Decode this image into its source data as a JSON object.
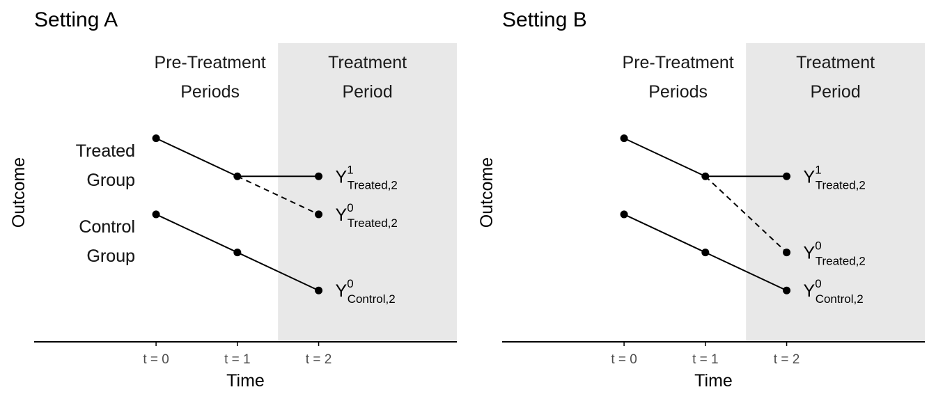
{
  "colors": {
    "shade": "#e8e8e8",
    "line": "#000000",
    "tick_text": "#4d4d4d"
  },
  "chart_data": [
    {
      "type": "line",
      "title": "Setting A",
      "xlabel": "Time",
      "ylabel": "Outcome",
      "x_ticks": [
        "t = 0",
        "t = 1",
        "t = 2"
      ],
      "region_labels": {
        "pre": [
          "Pre-Treatment",
          "Periods"
        ],
        "post": [
          "Treatment",
          "Period"
        ]
      },
      "group_labels": [
        {
          "lines": [
            "Treated",
            "Group"
          ],
          "y": 4.3
        },
        {
          "lines": [
            "Control",
            "Group"
          ],
          "y": 2.3
        }
      ],
      "series": [
        {
          "name": "Treated Group",
          "style": "solid",
          "points": [
            [
              0,
              5
            ],
            [
              1,
              4
            ],
            [
              2,
              4
            ]
          ]
        },
        {
          "name": "Treated counterfactual",
          "style": "dashed",
          "points": [
            [
              1,
              4
            ],
            [
              2,
              3
            ]
          ]
        },
        {
          "name": "Control Group",
          "style": "solid",
          "points": [
            [
              0,
              3
            ],
            [
              1,
              2
            ],
            [
              2,
              1
            ]
          ]
        }
      ],
      "point_labels": [
        {
          "x": 2,
          "y": 4,
          "base": "Y",
          "sup": "1",
          "sub": "Treated,2"
        },
        {
          "x": 2,
          "y": 3,
          "base": "Y",
          "sup": "0",
          "sub": "Treated,2"
        },
        {
          "x": 2,
          "y": 1,
          "base": "Y",
          "sup": "0",
          "sub": "Control,2"
        }
      ],
      "xlim": [
        -1.5,
        3.7
      ],
      "ylim": [
        -0.35,
        7.5
      ],
      "treatment_region_start": 1.5
    },
    {
      "type": "line",
      "title": "Setting B",
      "xlabel": "Time",
      "ylabel": "Outcome",
      "x_ticks": [
        "t = 0",
        "t = 1",
        "t = 2"
      ],
      "region_labels": {
        "pre": [
          "Pre-Treatment",
          "Periods"
        ],
        "post": [
          "Treatment",
          "Period"
        ]
      },
      "group_labels": [
        {
          "lines": [
            "Treated",
            "Group"
          ],
          "y": 4.3
        },
        {
          "lines": [
            "Control",
            "Group"
          ],
          "y": 2.3
        }
      ],
      "series": [
        {
          "name": "Treated Group",
          "style": "solid",
          "points": [
            [
              0,
              5
            ],
            [
              1,
              4
            ],
            [
              2,
              4
            ]
          ]
        },
        {
          "name": "Treated counterfactual",
          "style": "dashed",
          "points": [
            [
              1,
              4
            ],
            [
              2,
              2
            ]
          ]
        },
        {
          "name": "Control Group",
          "style": "solid",
          "points": [
            [
              0,
              3
            ],
            [
              1,
              2
            ],
            [
              2,
              1
            ]
          ]
        }
      ],
      "point_labels": [
        {
          "x": 2,
          "y": 4,
          "base": "Y",
          "sup": "1",
          "sub": "Treated,2"
        },
        {
          "x": 2,
          "y": 2,
          "base": "Y",
          "sup": "0",
          "sub": "Treated,2"
        },
        {
          "x": 2,
          "y": 1,
          "base": "Y",
          "sup": "0",
          "sub": "Control,2"
        }
      ],
      "xlim": [
        -1.5,
        3.7
      ],
      "ylim": [
        -0.35,
        7.5
      ],
      "treatment_region_start": 1.5
    }
  ]
}
